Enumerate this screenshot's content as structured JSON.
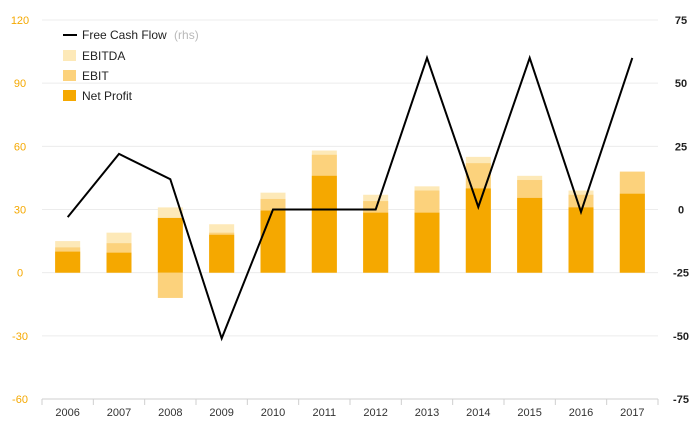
{
  "chart_data": {
    "type": "bar",
    "categories": [
      "2006",
      "2007",
      "2008",
      "2009",
      "2010",
      "2011",
      "2012",
      "2013",
      "2014",
      "2015",
      "2016",
      "2017"
    ],
    "series": [
      {
        "name": "EBITDA",
        "kind": "bar",
        "color": "#fde9b8",
        "values": [
          15,
          19,
          31,
          23,
          38,
          58,
          37,
          41,
          55,
          46,
          39,
          47
        ]
      },
      {
        "name": "EBIT",
        "kind": "bar",
        "color": "#fcd27c",
        "values": [
          12,
          14,
          -12,
          19,
          35,
          56,
          34,
          39,
          52,
          44,
          37,
          48
        ]
      },
      {
        "name": "Net Profit",
        "kind": "bar",
        "color": "#f5a800",
        "values": [
          10,
          9.5,
          26,
          18,
          29.5,
          46,
          28.5,
          28.5,
          40,
          35.5,
          31,
          37.5
        ]
      },
      {
        "name": "Free Cash Flow",
        "suffix": "(rhs)",
        "kind": "line",
        "axis": "right",
        "color": "#000000",
        "values": [
          -3,
          22,
          12,
          -51,
          0,
          0,
          0,
          60,
          1,
          60,
          -1,
          60
        ]
      }
    ],
    "y_left": {
      "min": -60,
      "max": 120,
      "ticks": [
        -60,
        -30,
        0,
        30,
        60,
        90,
        120
      ]
    },
    "y_right": {
      "min": -75,
      "max": 75,
      "ticks": [
        -75,
        -50,
        -25,
        0,
        25,
        50,
        75
      ]
    },
    "grid": true,
    "legend_position": "top-left"
  },
  "colors": {
    "grid": "#ececec",
    "left_tick": "#f5a800",
    "right_tick": "#222222"
  }
}
